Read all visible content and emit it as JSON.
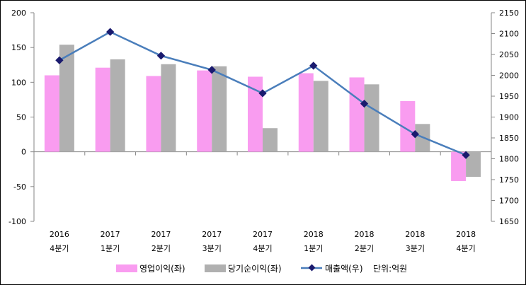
{
  "chart_data": {
    "type": "bar+line",
    "categories": [
      {
        "year": "2016",
        "quarter": "4분기"
      },
      {
        "year": "2017",
        "quarter": "1분기"
      },
      {
        "year": "2017",
        "quarter": "2분기"
      },
      {
        "year": "2017",
        "quarter": "3분기"
      },
      {
        "year": "2017",
        "quarter": "4분기"
      },
      {
        "year": "2018",
        "quarter": "1분기"
      },
      {
        "year": "2018",
        "quarter": "2분기"
      },
      {
        "year": "2018",
        "quarter": "3분기"
      },
      {
        "year": "2018",
        "quarter": "4분기"
      }
    ],
    "series": [
      {
        "name": "영업이익(좌)",
        "kind": "bar",
        "axis": "left",
        "color": "#f99cf0",
        "values": [
          110,
          121,
          109,
          117,
          108,
          113,
          107,
          73,
          -42
        ]
      },
      {
        "name": "당기순이익(좌)",
        "kind": "bar",
        "axis": "left",
        "color": "#b0b0b0",
        "values": [
          154,
          133,
          126,
          123,
          34,
          102,
          97,
          40,
          -36
        ]
      },
      {
        "name": "매출액(우)",
        "kind": "line",
        "axis": "right",
        "color": "#4a7ebb",
        "marker_color": "#1a1a6e",
        "values": [
          2036,
          2104,
          2047,
          2013,
          1957,
          2023,
          1932,
          1859,
          1809
        ]
      }
    ],
    "left_axis": {
      "min": -100,
      "max": 200,
      "step": 50,
      "ticks": [
        "-100",
        "-50",
        "0",
        "50",
        "100",
        "150",
        "200"
      ]
    },
    "right_axis": {
      "min": 1650,
      "max": 2150,
      "step": 50,
      "ticks": [
        "1650",
        "1700",
        "1750",
        "1800",
        "1850",
        "1900",
        "1950",
        "2000",
        "2050",
        "2100",
        "2150"
      ]
    },
    "unit_note": "단위:억원",
    "legend_position": "bottom"
  }
}
